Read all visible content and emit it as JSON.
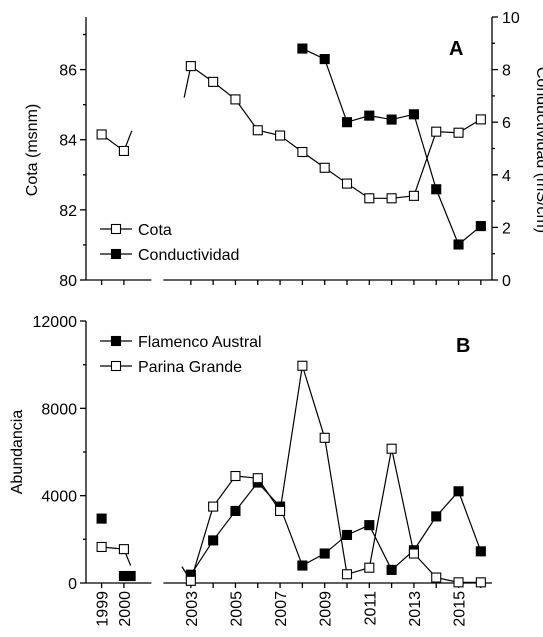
{
  "figure": {
    "background": "#ffffff",
    "ink": "#000000"
  },
  "chart_data": [
    {
      "type": "line",
      "panel_label": "A",
      "xlabel": "",
      "ylabel": "Cota (msnm)",
      "y2label": "Conductividad (mS/cm)",
      "ylim": [
        80,
        87.5
      ],
      "y2lim": [
        0,
        10
      ],
      "yticks": [
        80,
        82,
        84,
        86
      ],
      "y2ticks": [
        0,
        2,
        4,
        6,
        8,
        10
      ],
      "xlim": [
        1998.3,
        2016.5
      ],
      "x_axis_break_at": 2001.5,
      "legend_position": "bottom-left",
      "series": [
        {
          "name": "Cota",
          "axis": "left",
          "marker": "open-square",
          "segments": [
            {
              "x": [
                1999,
                2000
              ],
              "y": [
                84.15,
                83.68
              ]
            },
            {
              "x": [
                2003,
                2004,
                2005,
                2006,
                2007,
                2008,
                2009,
                2010,
                2011,
                2012,
                2013,
                2014,
                2015,
                2016
              ],
              "y": [
                86.1,
                85.65,
                85.15,
                84.27,
                84.12,
                83.65,
                83.2,
                82.75,
                82.33,
                82.33,
                82.4,
                84.23,
                84.2,
                84.58
              ]
            }
          ],
          "partial_segments": [
            {
              "x": [
                2000,
                2000.35
              ],
              "y": [
                83.68,
                84.25
              ]
            },
            {
              "x": [
                2002.7,
                2003
              ],
              "y": [
                85.2,
                86.1
              ]
            }
          ]
        },
        {
          "name": "Conductividad",
          "axis": "right",
          "marker": "filled-square",
          "segments": [
            {
              "x": [
                2008,
                2009,
                2010,
                2011,
                2012,
                2013,
                2014,
                2015,
                2016
              ],
              "y": [
                8.8,
                8.4,
                6.0,
                6.25,
                6.1,
                6.3,
                3.45,
                1.35,
                2.05
              ]
            }
          ]
        }
      ]
    },
    {
      "type": "line",
      "panel_label": "B",
      "xlabel": "",
      "ylabel": "Abundancia",
      "ylim": [
        0,
        12000
      ],
      "yticks": [
        0,
        4000,
        8000,
        12000
      ],
      "xlim": [
        1998.3,
        2016.5
      ],
      "x_axis_break_at": 2001.5,
      "xtick_labels": [
        {
          "x": 1999,
          "label": "1999"
        },
        {
          "x": 2000,
          "label": "2000"
        },
        {
          "x": 2003,
          "label": "2003"
        },
        {
          "x": 2005,
          "label": "2005"
        },
        {
          "x": 2007,
          "label": "2007"
        },
        {
          "x": 2009,
          "label": "2009"
        },
        {
          "x": 2011,
          "label": "2011"
        },
        {
          "x": 2013,
          "label": "2013"
        },
        {
          "x": 2015,
          "label": "2015"
        }
      ],
      "legend_position": "top-left",
      "series": [
        {
          "name": "Flamenco Austral",
          "marker": "filled-square",
          "segments": [
            {
              "x": [
                1999
              ],
              "y": [
                2950
              ]
            },
            {
              "x": [
                2000,
                2000.3
              ],
              "y": [
                320,
                320
              ]
            },
            {
              "x": [
                2003,
                2004,
                2005,
                2006,
                2007,
                2008,
                2009,
                2010,
                2011,
                2012,
                2013,
                2014,
                2015,
                2016
              ],
              "y": [
                380,
                1950,
                3300,
                4600,
                3500,
                800,
                1350,
                2200,
                2650,
                600,
                1500,
                3050,
                4200,
                1450
              ]
            }
          ]
        },
        {
          "name": "Parina Grande",
          "marker": "open-square",
          "segments": [
            {
              "x": [
                1999,
                2000
              ],
              "y": [
                1650,
                1550
              ]
            },
            {
              "x": [
                2003,
                2004,
                2005,
                2006,
                2007,
                2008,
                2009,
                2010,
                2011,
                2012,
                2013,
                2014,
                2015,
                2016
              ],
              "y": [
                100,
                3500,
                4900,
                4800,
                3300,
                9950,
                6650,
                400,
                700,
                6150,
                1350,
                250,
                30,
                30
              ]
            }
          ],
          "partial_segments": [
            {
              "x": [
                2000,
                2000.3
              ],
              "y": [
                1550,
                800
              ]
            },
            {
              "x": [
                2002.6,
                2003
              ],
              "y": [
                750,
                100
              ]
            }
          ]
        }
      ]
    }
  ]
}
